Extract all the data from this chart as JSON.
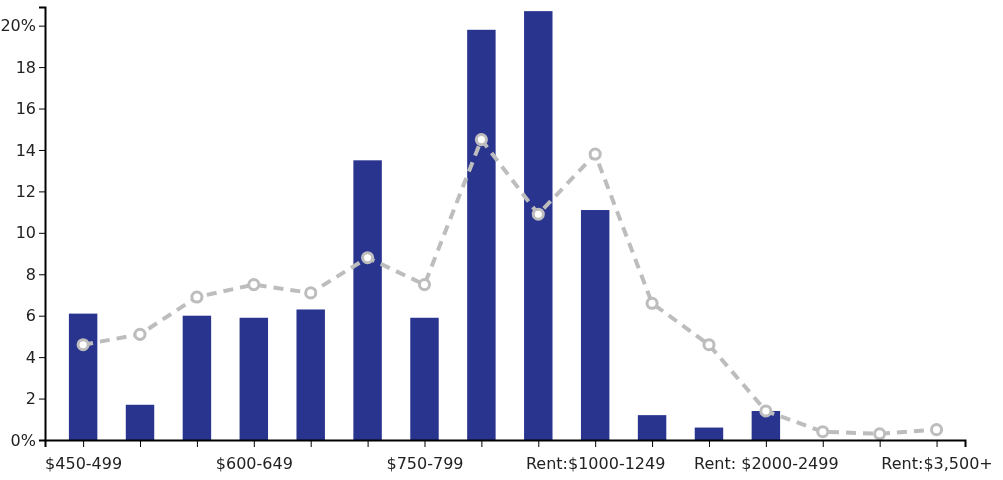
{
  "chart_data": {
    "type": "bar",
    "categories": [
      "$450-499",
      null,
      null,
      "$600-649",
      null,
      null,
      "$750-799",
      null,
      null,
      "Rent:$1000-1249",
      null,
      null,
      "Rent: $2000-2499",
      null,
      null,
      "Rent:$3,500+"
    ],
    "series": [
      {
        "color": "#29348f",
        "values": [
          6.1,
          1.7,
          6.0,
          5.9,
          6.3,
          13.5,
          5.9,
          19.8,
          20.7,
          11.1,
          1.2,
          0.6,
          1.4,
          null,
          null,
          null
        ]
      },
      {
        "type": "line",
        "color": "#bdbdbd",
        "marker": "circle",
        "line_style": "dashed",
        "values": [
          4.6,
          5.1,
          6.9,
          7.5,
          7.1,
          8.8,
          7.5,
          14.5,
          10.9,
          13.8,
          6.6,
          4.6,
          1.4,
          0.4,
          0.3,
          0.5
        ]
      }
    ],
    "ylim": [
      0,
      20.9
    ],
    "yticks": [
      {
        "value": 0,
        "label": "0%"
      },
      2,
      4,
      6,
      8,
      10,
      12,
      14,
      16,
      18,
      {
        "value": 20,
        "label": "20%"
      }
    ],
    "grid": false
  }
}
